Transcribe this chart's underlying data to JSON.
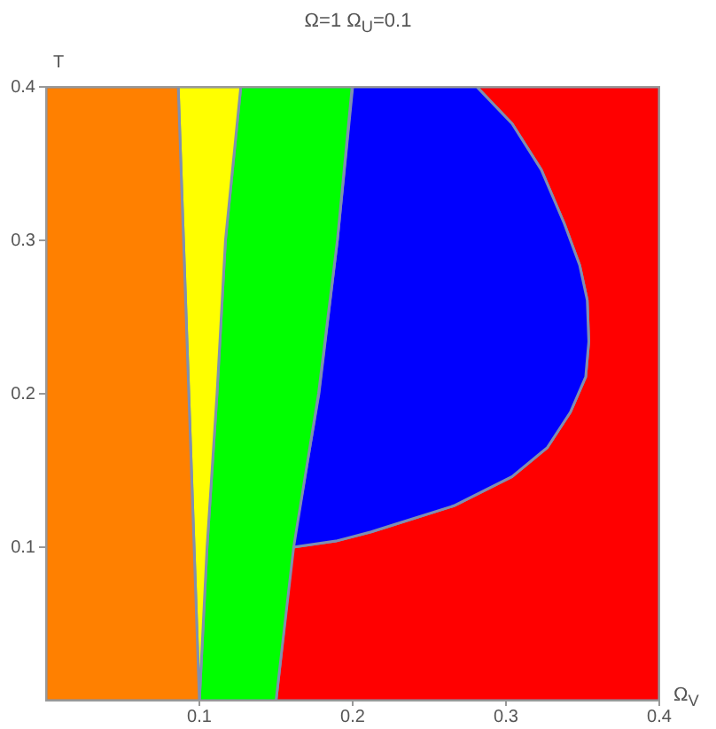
{
  "chart_data": {
    "type": "area",
    "title": "Ω=1  Ω$_{U}$=0.1",
    "xlabel": "Ω$_{V}$",
    "ylabel": "T",
    "xlim": [
      0,
      0.4
    ],
    "ylim": [
      0,
      0.4
    ],
    "xticks": [
      0.1,
      0.2,
      0.3,
      0.4
    ],
    "yticks": [
      0.1,
      0.2,
      0.3,
      0.4
    ],
    "legend": false,
    "series": [
      {
        "color": "#ff8000",
        "x": [
          0,
          0.1,
          0.0862,
          0
        ],
        "values": [
          0,
          0,
          0.4,
          0.4
        ]
      },
      {
        "color": "#ffff00",
        "x": [
          0.1,
          0.102,
          0.105,
          0.1115,
          0.117,
          0.127,
          0.0862
        ],
        "values": [
          0,
          0.04,
          0.1,
          0.2,
          0.3,
          0.4,
          0.4
        ]
      },
      {
        "color": "#00ff00",
        "x": [
          0.1,
          0.15,
          0.1615,
          0.1777,
          0.19,
          0.1996,
          0.127,
          0.117,
          0.1115,
          0.105,
          0.102
        ],
        "values": [
          0,
          0,
          0.1,
          0.2,
          0.3,
          0.4,
          0.4,
          0.3,
          0.2,
          0.1,
          0.04
        ]
      },
      {
        "color": "#0000ff",
        "x": [
          0.161,
          0.178,
          0.19,
          0.2,
          0.281,
          0.304,
          0.323,
          0.338,
          0.348,
          0.353,
          0.354,
          0.352,
          0.342,
          0.327,
          0.304,
          0.266,
          0.228,
          0.212,
          0.189
        ],
        "values": [
          0.1,
          0.2,
          0.3,
          0.4,
          0.4,
          0.376,
          0.346,
          0.311,
          0.284,
          0.261,
          0.234,
          0.211,
          0.188,
          0.165,
          0.146,
          0.127,
          0.115,
          0.11,
          0.104
        ]
      },
      {
        "color": "#ff0000",
        "x": [
          0.15,
          0.4,
          0.4,
          0.281,
          0.304,
          0.323,
          0.338,
          0.348,
          0.353,
          0.354,
          0.352,
          0.342,
          0.327,
          0.304,
          0.266,
          0.228,
          0.212,
          0.189,
          0.161
        ],
        "values": [
          0,
          0,
          0.4,
          0.4,
          0.376,
          0.346,
          0.311,
          0.284,
          0.261,
          0.234,
          0.211,
          0.188,
          0.165,
          0.146,
          0.127,
          0.115,
          0.11,
          0.104,
          0.1
        ]
      }
    ]
  }
}
